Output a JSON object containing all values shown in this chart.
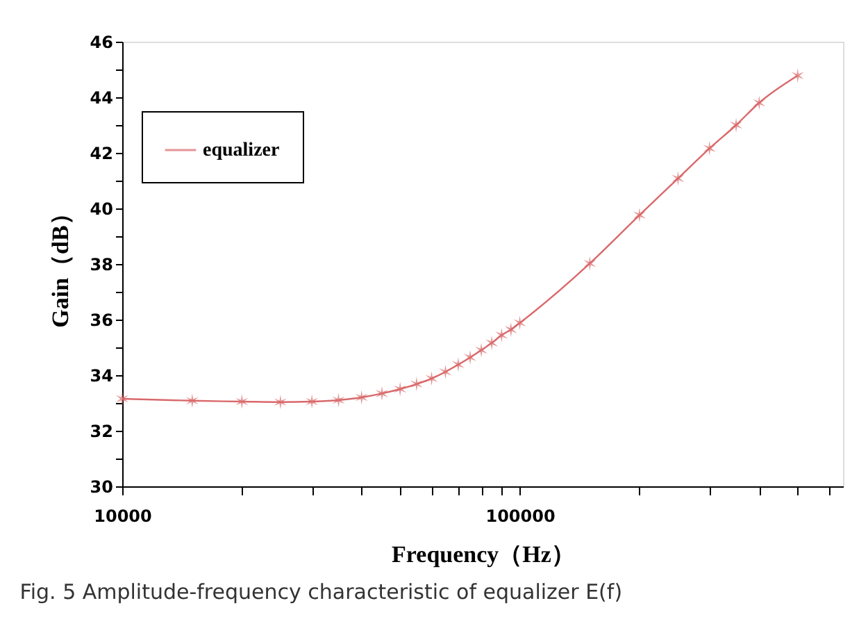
{
  "chart_data": {
    "type": "line",
    "xlabel": "Frequency（Hz）",
    "ylabel": "Gain（dB）",
    "annotations": [
      "Fig. 5 Amplitude-frequency characteristic of equalizer E(f)"
    ],
    "log": "x",
    "grid": false,
    "legend": "top left",
    "marker": "cross",
    "line_style": "solid",
    "xlim": [
      10000,
      650000
    ],
    "ylim": [
      30,
      46
    ],
    "xticks": [
      10000,
      {
        "value": 20000,
        "label": null
      },
      {
        "value": 30000,
        "label": null
      },
      {
        "value": 40000,
        "label": null
      },
      {
        "value": 50000,
        "label": null
      },
      {
        "value": 60000,
        "label": null
      },
      {
        "value": 70000,
        "label": null
      },
      {
        "value": 80000,
        "label": null
      },
      {
        "value": 90000,
        "label": null
      },
      100000,
      {
        "value": 200000,
        "label": null
      },
      {
        "value": 300000,
        "label": null
      },
      {
        "value": 400000,
        "label": null
      },
      {
        "value": 500000,
        "label": null
      },
      {
        "value": 600000,
        "label": null
      }
    ],
    "yticks": [
      30,
      {
        "value": 31,
        "label": null
      },
      32,
      {
        "value": 33,
        "label": null
      },
      34,
      {
        "value": 35,
        "label": null
      },
      36,
      {
        "value": 37,
        "label": null
      },
      38,
      {
        "value": 39,
        "label": null
      },
      40,
      {
        "value": 41,
        "label": null
      },
      42,
      {
        "value": 43,
        "label": null
      },
      44,
      {
        "value": 45,
        "label": null
      },
      46
    ],
    "x": [
      10000,
      15000,
      20000,
      25000,
      30000,
      35000,
      40000,
      45000,
      50000,
      55000,
      60000,
      65000,
      70000,
      75000,
      80000,
      85000,
      90000,
      95000,
      100000,
      150000,
      200000,
      250000,
      300000,
      350000,
      400000,
      500000
    ],
    "series": [
      {
        "name": "equalizer",
        "color": "#d9686a",
        "values": [
          33.15,
          33.08,
          33.05,
          33.03,
          33.05,
          33.1,
          33.2,
          33.34,
          33.5,
          33.68,
          33.88,
          34.12,
          34.38,
          34.64,
          34.9,
          35.16,
          35.44,
          35.64,
          35.88,
          38.02,
          39.76,
          41.08,
          42.16,
          43.0,
          43.8,
          44.78
        ]
      }
    ]
  }
}
